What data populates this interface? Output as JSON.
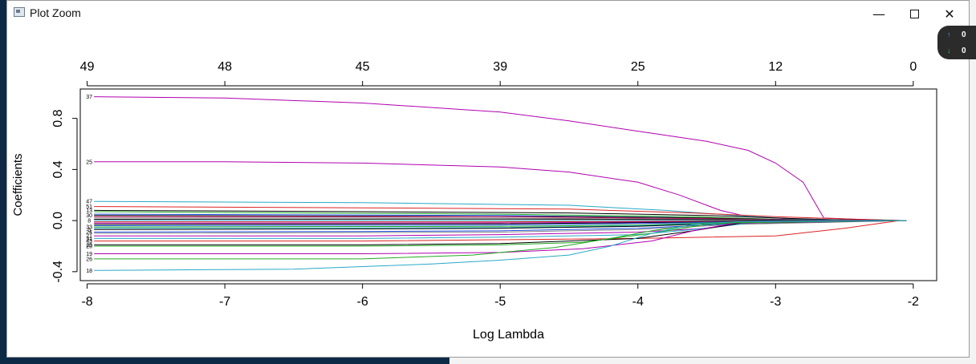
{
  "window": {
    "title": "Plot Zoom",
    "minimize_glyph": "—",
    "close_glyph": "✕"
  },
  "network_widget": {
    "up_icon": "↑",
    "up_value": "0",
    "down_icon": "↓",
    "down_value": "0"
  },
  "chart_data": {
    "type": "line",
    "title": "",
    "xlabel": "Log Lambda",
    "ylabel": "Coefficients",
    "xlim": [
      -8.05,
      -1.83
    ],
    "ylim": [
      -0.47,
      1.03
    ],
    "x_ticks": [
      -8,
      -7,
      -6,
      -5,
      -4,
      -3,
      -2
    ],
    "y_ticks": [
      -0.4,
      0.0,
      0.4,
      0.8
    ],
    "top_axis": {
      "positions": [
        -8,
        -7,
        -6,
        -5,
        -4,
        -3,
        -2
      ],
      "labels": [
        "49",
        "48",
        "45",
        "39",
        "25",
        "12",
        "0"
      ]
    },
    "grid": false,
    "series": [
      {
        "name": "37",
        "color": "#b000b0",
        "points": [
          [
            -7.95,
            0.97
          ],
          [
            -7,
            0.96
          ],
          [
            -6,
            0.92
          ],
          [
            -5,
            0.85
          ],
          [
            -4.5,
            0.78
          ],
          [
            -4,
            0.7
          ],
          [
            -3.5,
            0.62
          ],
          [
            -3.2,
            0.55
          ],
          [
            -3,
            0.45
          ],
          [
            -2.8,
            0.3
          ],
          [
            -2.65,
            0.02
          ],
          [
            -2.3,
            0.005
          ],
          [
            -2.05,
            0
          ]
        ]
      },
      {
        "name": "25",
        "color": "#b000b0",
        "points": [
          [
            -7.95,
            0.46
          ],
          [
            -7,
            0.46
          ],
          [
            -6,
            0.45
          ],
          [
            -5,
            0.42
          ],
          [
            -4.5,
            0.38
          ],
          [
            -4,
            0.3
          ],
          [
            -3.7,
            0.2
          ],
          [
            -3.4,
            0.08
          ],
          [
            -3.2,
            0.03
          ],
          [
            -2.8,
            0.01
          ],
          [
            -2.05,
            0
          ]
        ]
      },
      {
        "name": "47",
        "color": "#2aa8c8",
        "points": [
          [
            -7.95,
            0.15
          ],
          [
            -6,
            0.14
          ],
          [
            -4.5,
            0.12
          ],
          [
            -3.8,
            0.08
          ],
          [
            -3.3,
            0.04
          ],
          [
            -2.8,
            0.01
          ],
          [
            -2.05,
            0
          ]
        ]
      },
      {
        "name": "51",
        "color": "#dd2222",
        "points": [
          [
            -7.95,
            0.11
          ],
          [
            -6,
            0.1
          ],
          [
            -4.5,
            0.09
          ],
          [
            -3.6,
            0.06
          ],
          [
            -3,
            0.03
          ],
          [
            -2.4,
            0.01
          ],
          [
            -2.05,
            0
          ]
        ]
      },
      {
        "name": "13",
        "color": "#000000",
        "points": [
          [
            -7.95,
            0.08
          ],
          [
            -6,
            0.07
          ],
          [
            -4.5,
            0.06
          ],
          [
            -3.5,
            0.04
          ],
          [
            -3,
            0.02
          ],
          [
            -2.5,
            0.005
          ],
          [
            -2.05,
            0
          ]
        ]
      },
      {
        "name": "",
        "color": "#22aa22",
        "points": [
          [
            -7.95,
            0.07
          ],
          [
            -5,
            0.05
          ],
          [
            -3.6,
            0.03
          ],
          [
            -3,
            0.01
          ],
          [
            -2.05,
            0
          ]
        ]
      },
      {
        "name": "",
        "color": "#1f4fe0",
        "points": [
          [
            -7.95,
            0.05
          ],
          [
            -5,
            0.04
          ],
          [
            -3.8,
            0.025
          ],
          [
            -3.1,
            0.01
          ],
          [
            -2.05,
            0
          ]
        ]
      },
      {
        "name": "30",
        "color": "#000000",
        "points": [
          [
            -7.95,
            0.04
          ],
          [
            -6,
            0.035
          ],
          [
            -4.5,
            0.03
          ],
          [
            -3.5,
            0.02
          ],
          [
            -2.8,
            0.005
          ],
          [
            -2.05,
            0
          ]
        ]
      },
      {
        "name": "",
        "color": "#cc1a6a",
        "points": [
          [
            -7.95,
            0.03
          ],
          [
            -5,
            0.03
          ],
          [
            -3.5,
            0.015
          ],
          [
            -2.9,
            0.005
          ],
          [
            -2.05,
            0
          ]
        ]
      },
      {
        "name": "",
        "color": "#888888",
        "points": [
          [
            -7.95,
            0.02
          ],
          [
            -5,
            0.02
          ],
          [
            -3.6,
            0.01
          ],
          [
            -2.9,
            0.003
          ],
          [
            -2.05,
            0
          ]
        ]
      },
      {
        "name": "",
        "color": "#000000",
        "points": [
          [
            -7.95,
            0.01
          ],
          [
            -5,
            0.012
          ],
          [
            -3.6,
            0.008
          ],
          [
            -2.9,
            0.002
          ],
          [
            -2.05,
            0
          ]
        ]
      },
      {
        "name": "8",
        "color": "#2aa8c8",
        "points": [
          [
            -7.95,
            0.0
          ],
          [
            -6,
            0.0
          ],
          [
            -4.5,
            0.0
          ],
          [
            -3,
            0.0
          ],
          [
            -2.05,
            0
          ]
        ]
      },
      {
        "name": "",
        "color": "#dd2222",
        "points": [
          [
            -7.95,
            -0.01
          ],
          [
            -5,
            -0.01
          ],
          [
            -3.5,
            -0.005
          ],
          [
            -2.05,
            0
          ]
        ]
      },
      {
        "name": "",
        "color": "#b000b0",
        "points": [
          [
            -7.95,
            -0.02
          ],
          [
            -5,
            -0.018
          ],
          [
            -3.5,
            -0.01
          ],
          [
            -2.8,
            -0.003
          ],
          [
            -2.05,
            0
          ]
        ]
      },
      {
        "name": "",
        "color": "#000000",
        "points": [
          [
            -7.95,
            -0.03
          ],
          [
            -5,
            -0.025
          ],
          [
            -3.8,
            -0.015
          ],
          [
            -3.1,
            -0.005
          ],
          [
            -2.05,
            0
          ]
        ]
      },
      {
        "name": "",
        "color": "#1f4fe0",
        "points": [
          [
            -7.95,
            -0.04
          ],
          [
            -5,
            -0.035
          ],
          [
            -3.8,
            -0.02
          ],
          [
            -3.1,
            -0.006
          ],
          [
            -2.05,
            0
          ]
        ]
      },
      {
        "name": "33",
        "color": "#22aa22",
        "points": [
          [
            -7.95,
            -0.05
          ],
          [
            -5,
            -0.045
          ],
          [
            -4,
            -0.035
          ],
          [
            -3.3,
            -0.012
          ],
          [
            -2.05,
            0
          ]
        ]
      },
      {
        "name": "",
        "color": "#2aa8c8",
        "points": [
          [
            -7.95,
            -0.06
          ],
          [
            -5,
            -0.055
          ],
          [
            -4,
            -0.04
          ],
          [
            -3.3,
            -0.015
          ],
          [
            -2.05,
            0
          ]
        ]
      },
      {
        "name": "5",
        "color": "#000000",
        "points": [
          [
            -7.95,
            -0.07
          ],
          [
            -6,
            -0.065
          ],
          [
            -5,
            -0.06
          ],
          [
            -4,
            -0.045
          ],
          [
            -3.2,
            -0.015
          ],
          [
            -2.05,
            0
          ]
        ]
      },
      {
        "name": "24",
        "color": "#1f4fe0",
        "points": [
          [
            -7.95,
            -0.09
          ],
          [
            -6,
            -0.085
          ],
          [
            -5,
            -0.08
          ],
          [
            -4,
            -0.06
          ],
          [
            -3.2,
            -0.02
          ],
          [
            -2.05,
            0
          ]
        ]
      },
      {
        "name": "",
        "color": "#888888",
        "points": [
          [
            -7.95,
            -0.1
          ],
          [
            -5,
            -0.09
          ],
          [
            -4,
            -0.07
          ],
          [
            -3.3,
            -0.03
          ],
          [
            -2.05,
            0
          ]
        ]
      },
      {
        "name": "21",
        "color": "#b000b0",
        "points": [
          [
            -7.95,
            -0.12
          ],
          [
            -6,
            -0.12
          ],
          [
            -5,
            -0.11
          ],
          [
            -4,
            -0.09
          ],
          [
            -3.5,
            -0.06
          ],
          [
            -3.2,
            -0.02
          ],
          [
            -2.05,
            0
          ]
        ]
      },
      {
        "name": "31",
        "color": "#2aa8c8",
        "points": [
          [
            -7.95,
            -0.14
          ],
          [
            -6,
            -0.14
          ],
          [
            -5,
            -0.13
          ],
          [
            -4,
            -0.11
          ],
          [
            -3.6,
            -0.07
          ],
          [
            -3.2,
            -0.02
          ],
          [
            -2.05,
            0
          ]
        ]
      },
      {
        "name": "43",
        "color": "#dd2222",
        "points": [
          [
            -7.95,
            -0.16
          ],
          [
            -6,
            -0.16
          ],
          [
            -5,
            -0.15
          ],
          [
            -4,
            -0.14
          ],
          [
            -3,
            -0.12
          ],
          [
            -2.5,
            -0.06
          ],
          [
            -2.1,
            0
          ]
        ]
      },
      {
        "name": "29",
        "color": "#000000",
        "points": [
          [
            -7.95,
            -0.19
          ],
          [
            -6,
            -0.19
          ],
          [
            -5,
            -0.18
          ],
          [
            -4,
            -0.14
          ],
          [
            -3.6,
            -0.08
          ],
          [
            -3.25,
            -0.02
          ],
          [
            -2.05,
            0
          ]
        ]
      },
      {
        "name": "20",
        "color": "#22aa22",
        "points": [
          [
            -7.95,
            -0.2
          ],
          [
            -6,
            -0.2
          ],
          [
            -5,
            -0.19
          ],
          [
            -4.4,
            -0.17
          ],
          [
            -3.9,
            -0.1
          ],
          [
            -3.5,
            -0.03
          ],
          [
            -3.2,
            -0.01
          ],
          [
            -2.05,
            0
          ]
        ]
      },
      {
        "name": "19",
        "color": "#b000b0",
        "points": [
          [
            -7.95,
            -0.26
          ],
          [
            -6,
            -0.26
          ],
          [
            -5,
            -0.25
          ],
          [
            -4.4,
            -0.22
          ],
          [
            -3.9,
            -0.16
          ],
          [
            -3.6,
            -0.08
          ],
          [
            -3.3,
            -0.02
          ],
          [
            -2.05,
            0
          ]
        ]
      },
      {
        "name": "26",
        "color": "#22aa22",
        "points": [
          [
            -7.95,
            -0.3
          ],
          [
            -6,
            -0.3
          ],
          [
            -5.2,
            -0.27
          ],
          [
            -4.6,
            -0.21
          ],
          [
            -4.2,
            -0.14
          ],
          [
            -3.9,
            -0.08
          ],
          [
            -3.5,
            -0.02
          ],
          [
            -2.05,
            0
          ]
        ]
      },
      {
        "name": "18",
        "color": "#2aa8c8",
        "points": [
          [
            -7.95,
            -0.39
          ],
          [
            -6.5,
            -0.38
          ],
          [
            -5.5,
            -0.34
          ],
          [
            -5,
            -0.31
          ],
          [
            -4.5,
            -0.27
          ],
          [
            -4.2,
            -0.2
          ],
          [
            -3.9,
            -0.1
          ],
          [
            -3.6,
            -0.03
          ],
          [
            -3.3,
            -0.01
          ],
          [
            -2.05,
            0
          ]
        ]
      }
    ]
  }
}
